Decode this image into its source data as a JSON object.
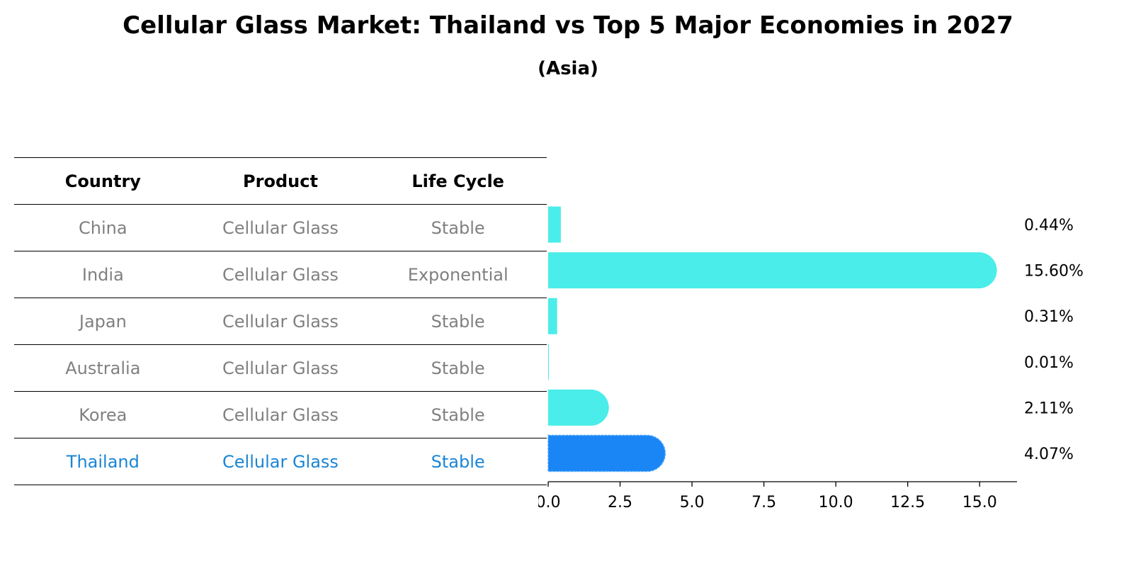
{
  "title": "Cellular Glass Market: Thailand vs Top 5 Major Economies in 2027",
  "subtitle": "(Asia)",
  "table": {
    "headers": [
      "Country",
      "Product",
      "Life Cycle"
    ],
    "rows": [
      {
        "country": "China",
        "product": "Cellular Glass",
        "life_cycle": "Stable"
      },
      {
        "country": "India",
        "product": "Cellular Glass",
        "life_cycle": "Exponential"
      },
      {
        "country": "Japan",
        "product": "Cellular Glass",
        "life_cycle": "Stable"
      },
      {
        "country": "Australia",
        "product": "Cellular Glass",
        "life_cycle": "Stable"
      },
      {
        "country": "Korea",
        "product": "Cellular Glass",
        "life_cycle": "Stable"
      },
      {
        "country": "Thailand",
        "product": "Cellular Glass",
        "life_cycle": "Stable"
      }
    ],
    "highlight_row": "Thailand",
    "highlight_color": "#1a85d4",
    "text_color": "#808080"
  },
  "chart_data": {
    "type": "bar",
    "orientation": "horizontal",
    "categories": [
      "China",
      "India",
      "Japan",
      "Australia",
      "Korea",
      "Thailand"
    ],
    "values": [
      0.44,
      15.6,
      0.31,
      0.01,
      2.11,
      4.07
    ],
    "value_labels": [
      "0.44%",
      "15.60%",
      "0.31%",
      "0.01%",
      "2.11%",
      "4.07%"
    ],
    "xlim": [
      0,
      16.3
    ],
    "xticks": [
      0.0,
      2.5,
      5.0,
      7.5,
      10.0,
      12.5,
      15.0
    ],
    "xtick_labels": [
      "0.0",
      "2.5",
      "5.0",
      "7.5",
      "10.0",
      "12.5",
      "15.0"
    ],
    "bar_color": "#4aede9",
    "highlight_color": "#1a85f5",
    "highlight_category": "Thailand",
    "grid": false,
    "title": "",
    "xlabel": "",
    "ylabel": ""
  }
}
